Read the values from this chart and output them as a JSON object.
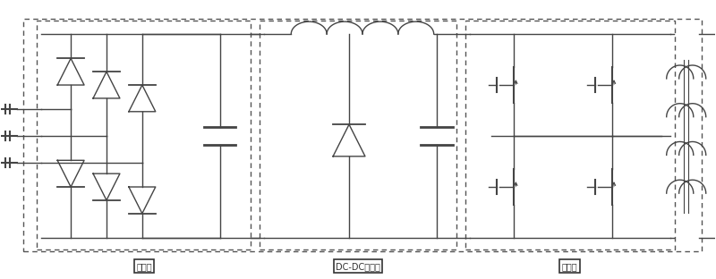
{
  "fig_width": 8.0,
  "fig_height": 3.12,
  "dpi": 100,
  "bg_color": "#ffffff",
  "line_color": "#444444",
  "dash_color": "#555555",
  "label1": "整流器",
  "label2": "DC-DC升压器",
  "label3": "逆变器"
}
